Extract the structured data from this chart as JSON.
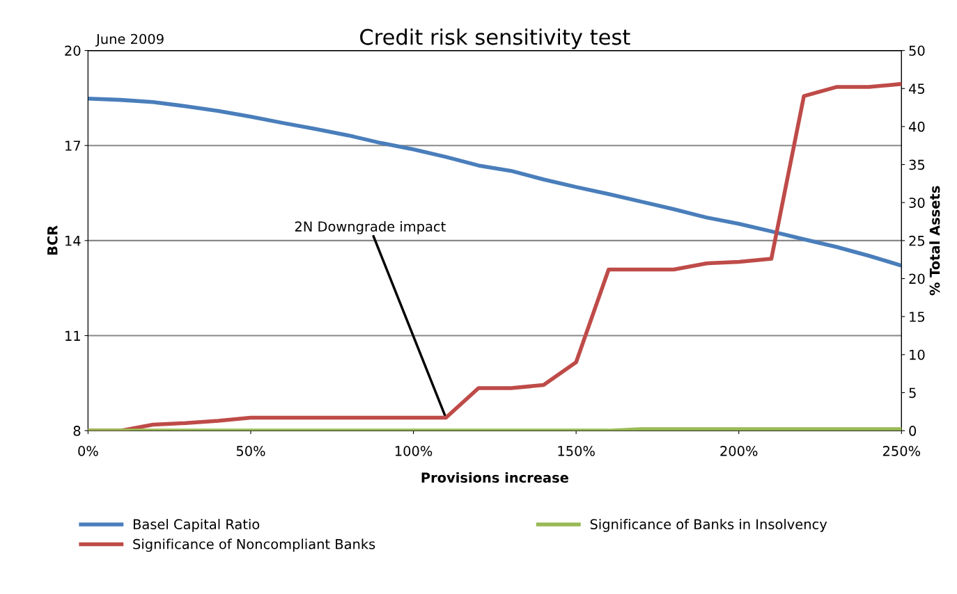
{
  "chart_data": {
    "type": "line",
    "title": "Credit risk sensitivity test",
    "xlabel": "Provisions increase",
    "ylabel": "BCR",
    "y2label": "% Total Assets",
    "x": [
      0,
      10,
      20,
      30,
      40,
      50,
      60,
      70,
      80,
      90,
      100,
      110,
      120,
      130,
      140,
      150,
      160,
      170,
      180,
      190,
      200,
      210,
      220,
      230,
      240,
      250
    ],
    "series": [
      {
        "name": "Basel Capital Ratio",
        "color": "#4a7ebb",
        "values": [
          18.48,
          18.44,
          18.37,
          18.24,
          18.09,
          17.91,
          17.71,
          17.52,
          17.32,
          17.08,
          16.88,
          16.64,
          16.37,
          16.2,
          15.93,
          15.69,
          15.47,
          15.23,
          14.99,
          14.73,
          14.53,
          14.29,
          14.04,
          13.8,
          13.52,
          13.21
        ]
      },
      {
        "name": "Significance of Noncompliant Banks",
        "color": "#be4b48",
        "axis": "y2",
        "values": [
          0,
          0,
          0.8,
          1.0,
          1.3,
          1.7,
          1.7,
          1.7,
          1.7,
          1.7,
          1.7,
          1.7,
          5.6,
          5.6,
          6.0,
          9.0,
          21.2,
          21.2,
          21.2,
          22.0,
          22.2,
          22.6,
          44.0,
          45.2,
          45.2,
          45.6
        ]
      },
      {
        "name": "Significance of Banks in Insolvency",
        "color": "#98b954",
        "axis": "y2",
        "values": [
          0,
          0,
          0,
          0,
          0,
          0,
          0,
          0,
          0,
          0,
          0,
          0,
          0,
          0,
          0,
          0,
          0,
          0.2,
          0.2,
          0.2,
          0.2,
          0.2,
          0.2,
          0.2,
          0.2,
          0.2
        ]
      }
    ],
    "xlim": [
      0,
      250
    ],
    "xticks": [
      {
        "value": 0,
        "label": "0%"
      },
      {
        "value": 50,
        "label": "50%"
      },
      {
        "value": 100,
        "label": "100%"
      },
      {
        "value": 150,
        "label": "150%"
      },
      {
        "value": 200,
        "label": "200%"
      },
      {
        "value": 250,
        "label": "250%"
      }
    ],
    "ylim": [
      8,
      20
    ],
    "yticks": [
      8,
      11,
      14,
      17,
      20
    ],
    "y2lim": [
      0,
      50
    ],
    "y2ticks": [
      0,
      5,
      10,
      15,
      20,
      25,
      30,
      35,
      40,
      45,
      50
    ],
    "annotations": [
      "June 2009",
      {
        "text": "2N Downgrade impact",
        "x": 110,
        "y": 8.4
      }
    ],
    "grid": "y",
    "legend": "bottom",
    "marker": "none",
    "line_style": "solid"
  }
}
